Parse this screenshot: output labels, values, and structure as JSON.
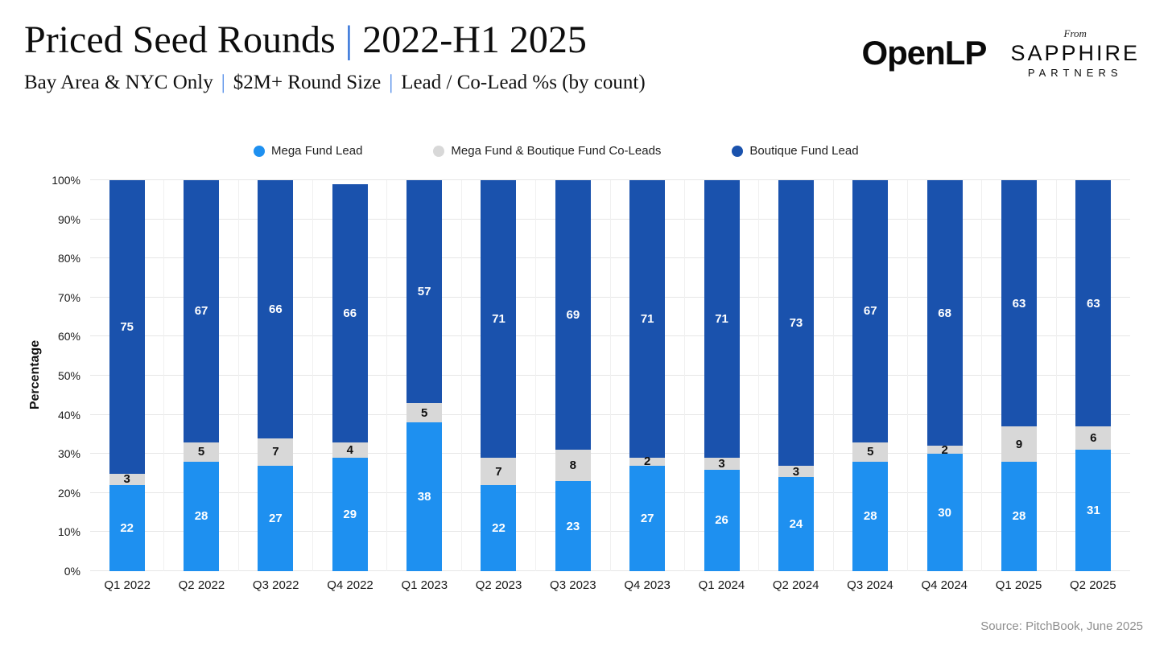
{
  "header": {
    "title_main": "Priced Seed Rounds",
    "separator": "|",
    "title_period": "2022-H1 2025",
    "subtitle_parts": [
      "Bay Area & NYC Only",
      "$2M+ Round Size",
      "Lead / Co-Lead %s (by count)"
    ],
    "logo_openlp": "OpenLP",
    "logo_from": "From",
    "logo_sapphire": "SAPPHIRE",
    "logo_partners": "PARTNERS"
  },
  "chart_data": {
    "type": "bar",
    "stacked": true,
    "title": "Priced Seed Rounds | 2022-H1 2025",
    "categories": [
      "Q1 2022",
      "Q2 2022",
      "Q3 2022",
      "Q4 2022",
      "Q1 2023",
      "Q2 2023",
      "Q3 2023",
      "Q4 2023",
      "Q1 2024",
      "Q2 2024",
      "Q3 2024",
      "Q4 2024",
      "Q1 2025",
      "Q2 2025"
    ],
    "series": [
      {
        "name": "Mega Fund Lead",
        "color": "#1e90f0",
        "label_color": "#ffffff",
        "values": [
          22,
          28,
          27,
          29,
          38,
          22,
          23,
          27,
          26,
          24,
          28,
          30,
          28,
          31
        ]
      },
      {
        "name": "Mega Fund & Boutique Fund Co-Leads",
        "color": "#d8d8d8",
        "label_color": "#111111",
        "values": [
          3,
          5,
          7,
          4,
          5,
          7,
          8,
          2,
          3,
          3,
          5,
          2,
          9,
          6
        ]
      },
      {
        "name": "Boutique Fund Lead",
        "color": "#1a52ad",
        "label_color": "#ffffff",
        "values": [
          75,
          67,
          66,
          66,
          57,
          71,
          69,
          71,
          71,
          73,
          67,
          68,
          63,
          63
        ]
      }
    ],
    "xlabel": "",
    "ylabel": "Percentage",
    "ylim": [
      0,
      100
    ],
    "yticks": [
      "0%",
      "10%",
      "20%",
      "30%",
      "40%",
      "50%",
      "60%",
      "70%",
      "80%",
      "90%",
      "100%"
    ],
    "grid": true,
    "legend_position": "top"
  },
  "source": "Source: PitchBook, June 2025"
}
